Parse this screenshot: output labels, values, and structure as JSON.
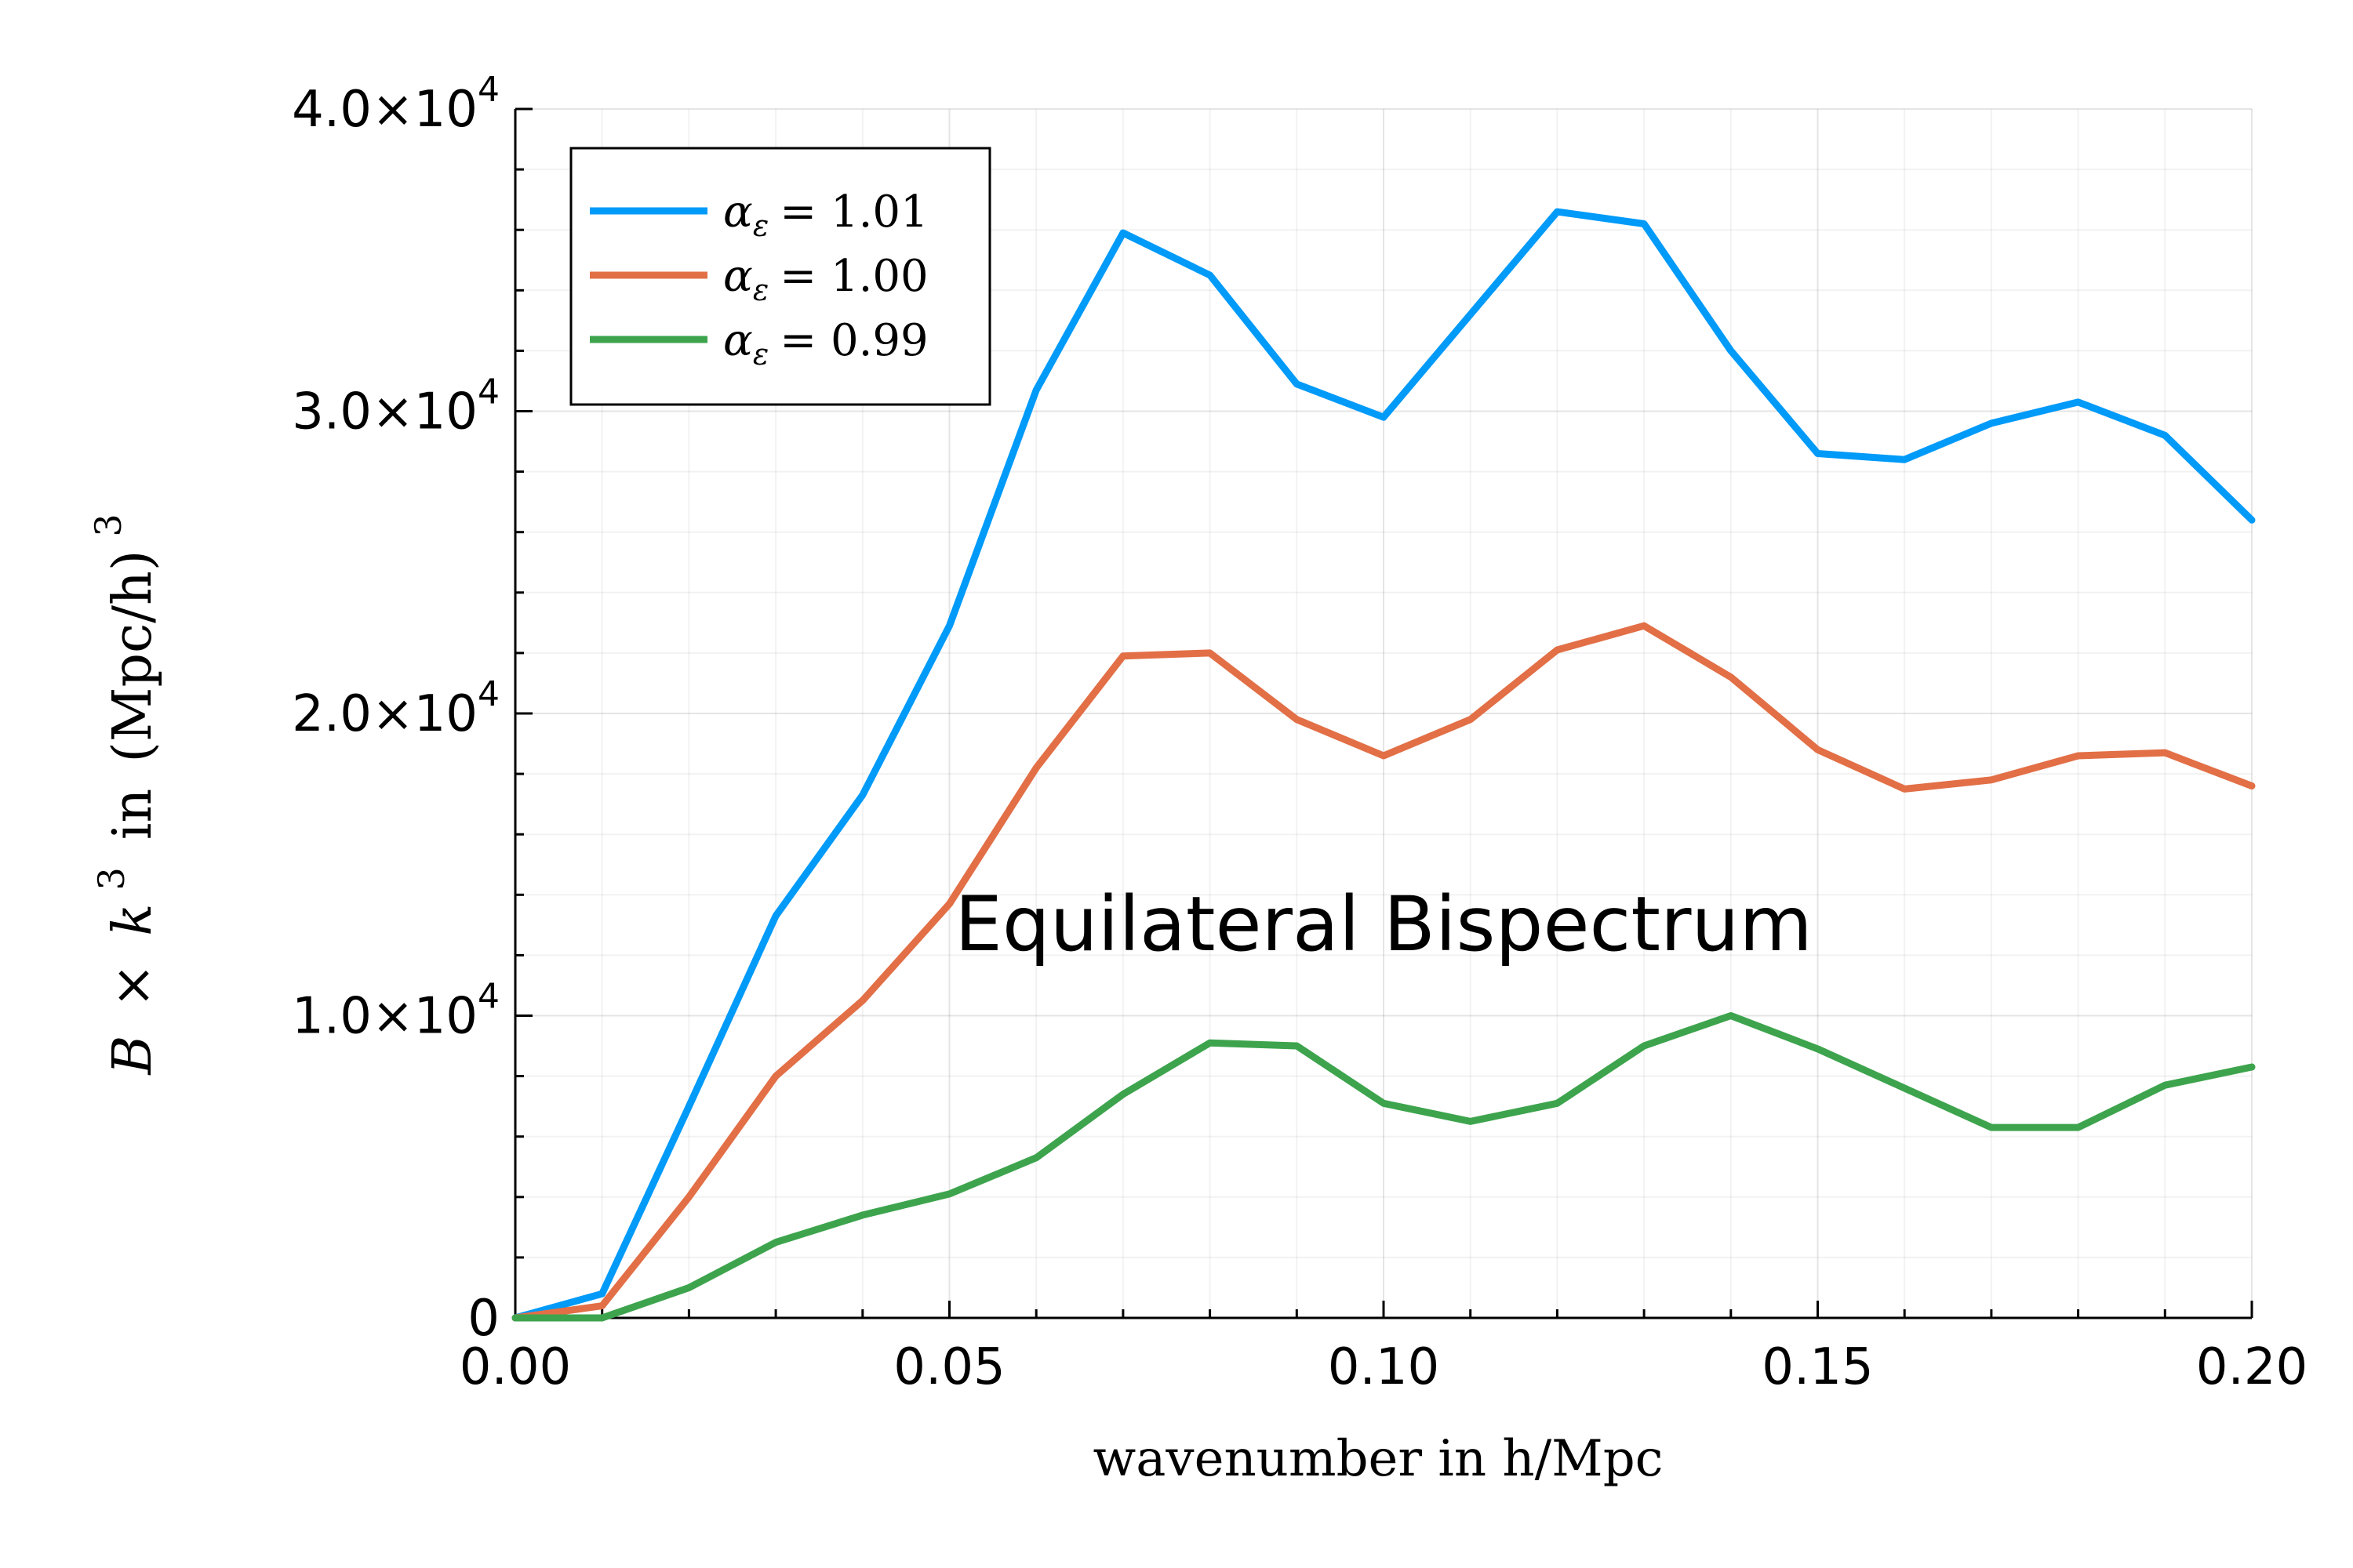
{
  "chart_data": {
    "type": "line",
    "xlabel": "wavenumber in h/Mpc",
    "ylabel": "B × k³ in (Mpc/h)³",
    "ylabel_parts": {
      "sym_B": "B",
      "times": "×",
      "sym_k": "k",
      "exp": "3",
      "in_word": "in",
      "unit": "(Mpc/h)",
      "unit_exp": "3"
    },
    "xlim": [
      0,
      0.2
    ],
    "ylim": [
      0,
      40000
    ],
    "x_ticks": [
      {
        "value": 0.0,
        "label": "0.00"
      },
      {
        "value": 0.05,
        "label": "0.05"
      },
      {
        "value": 0.1,
        "label": "0.10"
      },
      {
        "value": 0.15,
        "label": "0.15"
      },
      {
        "value": 0.2,
        "label": "0.20"
      }
    ],
    "y_ticks": [
      {
        "value": 0,
        "mant": "0",
        "exp": ""
      },
      {
        "value": 10000,
        "mant": "1.0×10",
        "exp": "4"
      },
      {
        "value": 20000,
        "mant": "2.0×10",
        "exp": "4"
      },
      {
        "value": 30000,
        "mant": "3.0×10",
        "exp": "4"
      },
      {
        "value": 40000,
        "mant": "4.0×10",
        "exp": "4"
      }
    ],
    "grid": true,
    "legend_position": "top-left",
    "annotation": {
      "text": "Equilateral Bispectrum",
      "x": 0.1,
      "y": 13000
    },
    "x": [
      0.0,
      0.01,
      0.02,
      0.03,
      0.04,
      0.05,
      0.06,
      0.07,
      0.08,
      0.09,
      0.1,
      0.11,
      0.12,
      0.13,
      0.14,
      0.15,
      0.16,
      0.17,
      0.18,
      0.19,
      0.2
    ],
    "series": [
      {
        "sym": "α",
        "sub": "ε",
        "value_text": "= 1.01",
        "color": "#009af9",
        "values": [
          0,
          800,
          7000,
          13300,
          17300,
          22900,
          30700,
          35900,
          34500,
          30900,
          29800,
          33200,
          36600,
          36200,
          32000,
          28600,
          28400,
          29600,
          30300,
          29200,
          26400
        ]
      },
      {
        "sym": "α",
        "sub": "ε",
        "value_text": "= 1.00",
        "color": "#e26f46",
        "values": [
          0,
          400,
          4000,
          8000,
          10500,
          13700,
          18200,
          21900,
          22000,
          19800,
          18600,
          19800,
          22100,
          22900,
          21200,
          18800,
          17500,
          17800,
          18600,
          18700,
          17600
        ]
      },
      {
        "sym": "α",
        "sub": "ε",
        "value_text": "= 0.99",
        "color": "#3da44d",
        "values": [
          0,
          0,
          1000,
          2500,
          3400,
          4100,
          5300,
          7400,
          9100,
          9000,
          7100,
          6500,
          7100,
          9000,
          10000,
          8900,
          7600,
          6300,
          6300,
          7700,
          8300
        ]
      }
    ]
  }
}
